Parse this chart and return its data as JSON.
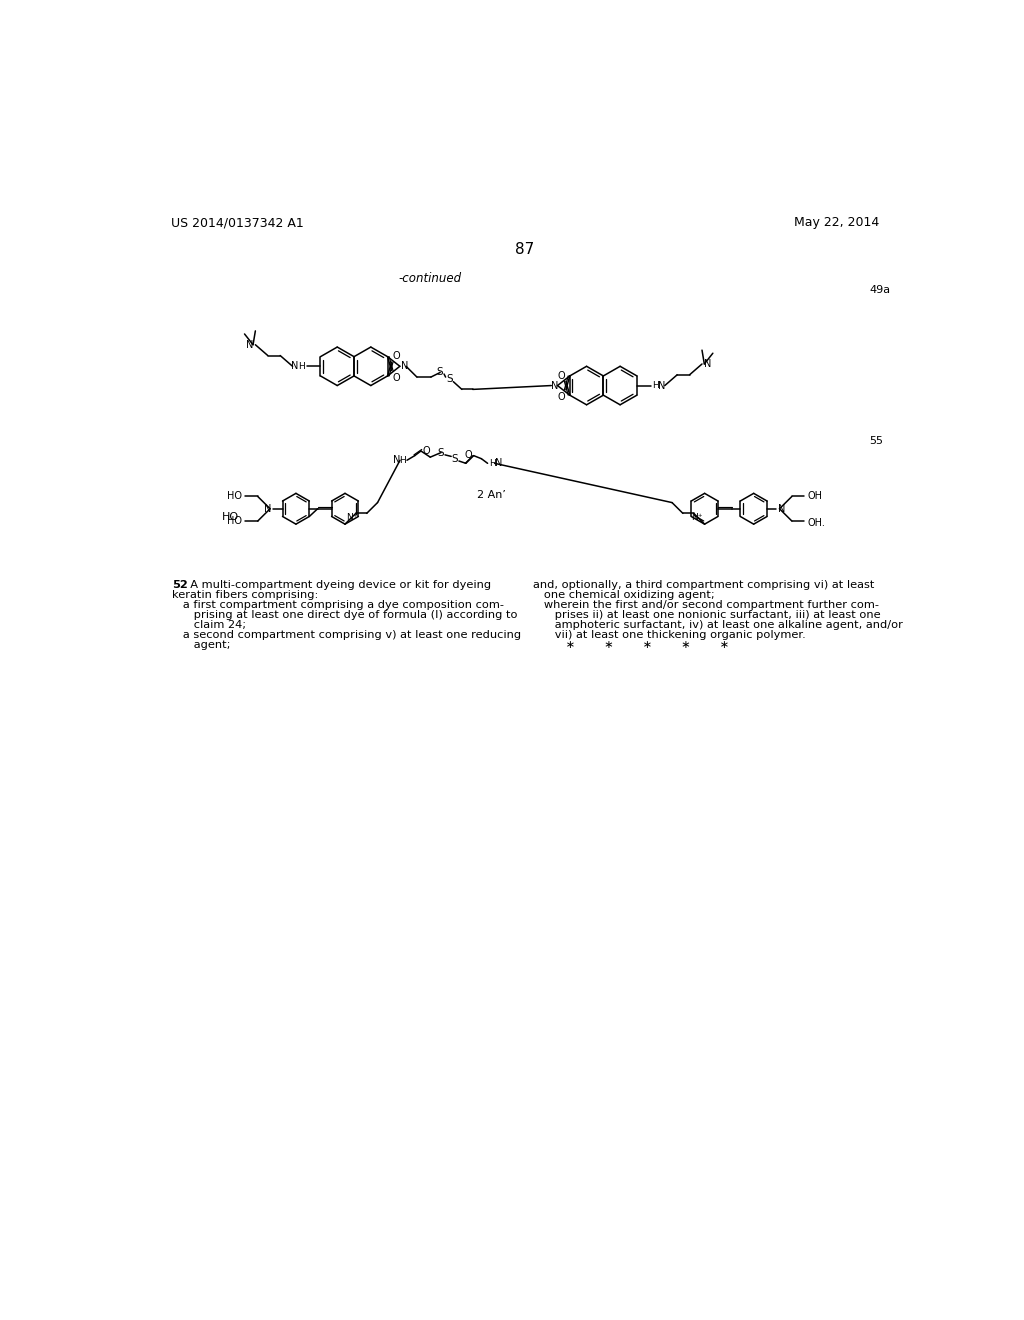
{
  "background_color": "#ffffff",
  "page_number": "87",
  "header_left": "US 2014/0137342 A1",
  "header_right": "May 22, 2014",
  "continued_label": "-continued",
  "label_49a": "49a",
  "label_55": "55",
  "label_2An": "2 An’",
  "claim_number_bold": "52",
  "claim_line1_rest": ". A multi-compartment dyeing device or kit for dyeing",
  "claim_left_lines": [
    "keratin fibers comprising:",
    "   a first compartment comprising a dye composition com-",
    "      prising at least one direct dye of formula (I) according to",
    "      claim 24;",
    "   a second compartment comprising v) at least one reducing",
    "      agent;"
  ],
  "claim_right_lines": [
    "and, optionally, a third compartment comprising vi) at least",
    "   one chemical oxidizing agent;",
    "   wherein the first and/or second compartment further com-",
    "      prises ii) at least one nonionic surfactant, iii) at least one",
    "      amphoteric surfactant, iv) at least one alkaline agent, and/or",
    "      vii) at least one thickening organic polymer.",
    "         ∗        ∗        ∗        ∗        ∗"
  ]
}
